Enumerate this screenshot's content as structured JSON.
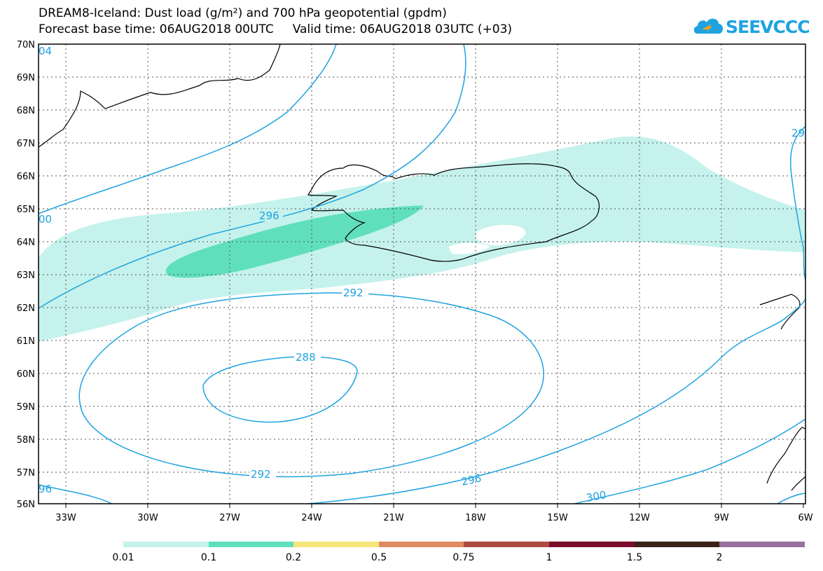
{
  "header": {
    "title_line1": "DREAM8-Iceland: Dust load (g/m²) and 700 hPa geopotential (gpdm)",
    "title_line2": "Forecast base time: 06AUG2018 00UTC     Valid time: 06AUG2018 03UTC (+03)"
  },
  "logo": {
    "text": "SEEVCCC",
    "icon": "cloud-icon",
    "color": "#1fa3e0"
  },
  "map": {
    "region": "Iceland",
    "lat_labels": [
      "70N",
      "69N",
      "68N",
      "67N",
      "66N",
      "65N",
      "64N",
      "63N",
      "62N",
      "61N",
      "60N",
      "59N",
      "58N",
      "57N",
      "56N"
    ],
    "lon_labels": [
      "33W",
      "30W",
      "27W",
      "24W",
      "21W",
      "18W",
      "15W",
      "12W",
      "9W",
      "6W"
    ],
    "contour_labels": [
      "296",
      "292",
      "288",
      "292",
      "296",
      "300",
      "00",
      "96",
      "04",
      "29"
    ],
    "contour_color": "#1fa3e0",
    "coastline_color": "#000000"
  },
  "legend": {
    "tick_labels": [
      "0.01",
      "0.1",
      "0.2",
      "0.5",
      "0.75",
      "1",
      "1.5",
      "2"
    ],
    "colors": [
      "#c5f2ec",
      "#5fe0bb",
      "#f5e57a",
      "#e08a64",
      "#ad4c42",
      "#7c0d2c",
      "#3b2318",
      "#98709e"
    ]
  }
}
